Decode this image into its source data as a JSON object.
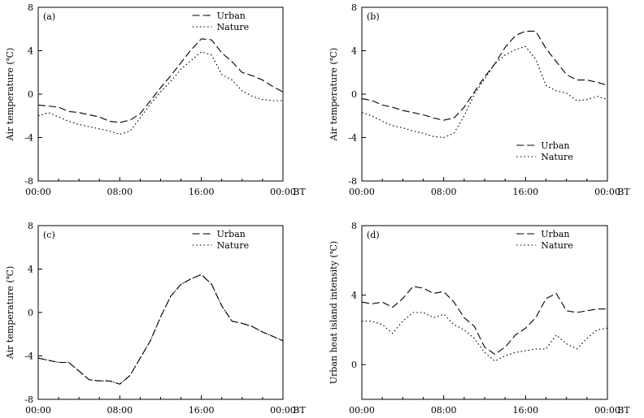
{
  "chart_data": [
    {
      "type": "line",
      "panel_label": "(a)",
      "ylabel": "Air temperature (℃)",
      "x_tick_labels": [
        "00:00",
        "08:00",
        "16:00",
        "00:00"
      ],
      "x_unit": "BT",
      "y_ticks": [
        -8,
        -4,
        0,
        4,
        8
      ],
      "ylim": [
        -8,
        8
      ],
      "xlim": [
        0,
        24
      ],
      "legend_position": "top-right",
      "series": [
        {
          "name": "Urban",
          "style": "dashed",
          "x": [
            0,
            1,
            2,
            3,
            4,
            5,
            6,
            7,
            8,
            9,
            10,
            11,
            12,
            13,
            14,
            15,
            16,
            17,
            18,
            19,
            20,
            21,
            22,
            23,
            24
          ],
          "y": [
            -1.0,
            -1.1,
            -1.2,
            -1.6,
            -1.7,
            -1.9,
            -2.1,
            -2.5,
            -2.6,
            -2.4,
            -1.8,
            -0.6,
            0.6,
            1.7,
            2.9,
            4.1,
            5.1,
            5.0,
            3.8,
            3.0,
            2.0,
            1.7,
            1.3,
            0.7,
            0.2
          ]
        },
        {
          "name": "Nature",
          "style": "dotted",
          "x": [
            0,
            1,
            2,
            3,
            4,
            5,
            6,
            7,
            8,
            9,
            10,
            11,
            12,
            13,
            14,
            15,
            16,
            17,
            18,
            19,
            20,
            21,
            22,
            23,
            24
          ],
          "y": [
            -2.0,
            -1.7,
            -2.1,
            -2.5,
            -2.8,
            -3.0,
            -3.2,
            -3.4,
            -3.7,
            -3.4,
            -2.2,
            -0.9,
            0.2,
            1.2,
            2.3,
            3.1,
            3.9,
            3.6,
            1.8,
            1.3,
            0.3,
            -0.2,
            -0.5,
            -0.6,
            -0.6
          ]
        }
      ]
    },
    {
      "type": "line",
      "panel_label": "(b)",
      "ylabel": "Air temperature (℃)",
      "x_tick_labels": [
        "00:00",
        "08:00",
        "16:00",
        "00:00"
      ],
      "x_unit": "BT",
      "y_ticks": [
        -8,
        -4,
        0,
        4,
        8
      ],
      "ylim": [
        -8,
        8
      ],
      "xlim": [
        0,
        24
      ],
      "legend_position": "bottom-right",
      "series": [
        {
          "name": "Urban",
          "style": "dashed",
          "x": [
            0,
            1,
            2,
            3,
            4,
            5,
            6,
            7,
            8,
            9,
            10,
            11,
            12,
            13,
            14,
            15,
            16,
            17,
            18,
            19,
            20,
            21,
            22,
            23,
            24
          ],
          "y": [
            -0.4,
            -0.6,
            -1.0,
            -1.2,
            -1.5,
            -1.7,
            -1.9,
            -2.2,
            -2.4,
            -2.2,
            -1.2,
            0.2,
            1.6,
            2.8,
            4.3,
            5.4,
            5.8,
            5.8,
            4.2,
            3.0,
            1.8,
            1.3,
            1.3,
            1.1,
            0.8
          ]
        },
        {
          "name": "Nature",
          "style": "dotted",
          "x": [
            0,
            1,
            2,
            3,
            4,
            5,
            6,
            7,
            8,
            9,
            10,
            11,
            12,
            13,
            14,
            15,
            16,
            17,
            18,
            19,
            20,
            21,
            22,
            23,
            24
          ],
          "y": [
            -1.7,
            -2.0,
            -2.5,
            -2.9,
            -3.1,
            -3.4,
            -3.6,
            -3.9,
            -4.0,
            -3.6,
            -2.0,
            0.0,
            1.4,
            2.8,
            3.6,
            4.1,
            4.4,
            3.2,
            0.8,
            0.3,
            0.1,
            -0.6,
            -0.5,
            -0.2,
            -0.5
          ]
        }
      ]
    },
    {
      "type": "line",
      "panel_label": "(c)",
      "ylabel": "Air temperature (℃)",
      "x_tick_labels": [
        "00:00",
        "08:00",
        "16:00",
        "00:00"
      ],
      "x_unit": "BT",
      "y_ticks": [
        -8,
        -4,
        0,
        4,
        8
      ],
      "ylim": [
        -8,
        8
      ],
      "xlim": [
        0,
        24
      ],
      "legend_position": "top-right",
      "series": [
        {
          "name": "Urban",
          "style": "dashed",
          "x": [
            0,
            1,
            2,
            3,
            4,
            5,
            6,
            7,
            8,
            9,
            10,
            11,
            12,
            13,
            14,
            15,
            16,
            17,
            18,
            19,
            20,
            21,
            22,
            23,
            24
          ],
          "y": [
            -4.2,
            -4.4,
            -4.6,
            -4.6,
            -5.4,
            -6.2,
            -6.3,
            -6.3,
            -6.6,
            -5.8,
            -4.2,
            -2.6,
            -0.4,
            1.5,
            2.6,
            3.1,
            3.5,
            2.6,
            0.6,
            -0.8,
            -1.0,
            -1.3,
            -1.8,
            -2.2,
            -2.6
          ]
        },
        {
          "name": "Nature",
          "style": "dotted",
          "x": [
            0,
            1,
            2,
            3,
            4,
            5,
            6,
            7,
            8,
            9,
            10,
            11,
            12,
            13,
            14,
            15,
            16,
            17,
            18,
            19,
            20,
            21,
            22,
            23,
            24
          ],
          "y": [
            -4.2,
            -4.4,
            -4.6,
            -4.6,
            -5.4,
            -6.2,
            -6.3,
            -6.3,
            -6.6,
            -5.8,
            -4.2,
            -2.6,
            -0.4,
            1.5,
            2.6,
            3.1,
            3.5,
            2.6,
            0.6,
            -0.8,
            -1.0,
            -1.3,
            -1.8,
            -2.2,
            -2.6
          ]
        }
      ]
    },
    {
      "type": "line",
      "panel_label": "(d)",
      "ylabel": "Urban heat island intensity (℃)",
      "x_tick_labels": [
        "00:00",
        "08:00",
        "16:00",
        "00:00"
      ],
      "x_unit": "BT",
      "y_ticks": [
        0,
        4,
        8
      ],
      "ylim": [
        -2,
        8
      ],
      "xlim": [
        0,
        24
      ],
      "legend_position": "top-right",
      "series": [
        {
          "name": "Urban",
          "style": "dashed",
          "x": [
            0,
            1,
            2,
            3,
            4,
            5,
            6,
            7,
            8,
            9,
            10,
            11,
            12,
            13,
            14,
            15,
            16,
            17,
            18,
            19,
            20,
            21,
            22,
            23,
            24
          ],
          "y": [
            3.6,
            3.5,
            3.6,
            3.3,
            3.8,
            4.5,
            4.4,
            4.1,
            4.2,
            3.6,
            2.7,
            2.2,
            1.0,
            0.6,
            1.0,
            1.7,
            2.1,
            2.7,
            3.8,
            4.1,
            3.1,
            3.0,
            3.1,
            3.2,
            3.2
          ]
        },
        {
          "name": "Nature",
          "style": "dotted",
          "x": [
            0,
            1,
            2,
            3,
            4,
            5,
            6,
            7,
            8,
            9,
            10,
            11,
            12,
            13,
            14,
            15,
            16,
            17,
            18,
            19,
            20,
            21,
            22,
            23,
            24
          ],
          "y": [
            2.5,
            2.5,
            2.3,
            1.8,
            2.5,
            3.0,
            3.0,
            2.7,
            2.9,
            2.3,
            2.0,
            1.5,
            0.7,
            0.2,
            0.5,
            0.7,
            0.8,
            0.9,
            0.9,
            1.7,
            1.2,
            0.9,
            1.5,
            2.0,
            2.1
          ]
        }
      ]
    }
  ]
}
